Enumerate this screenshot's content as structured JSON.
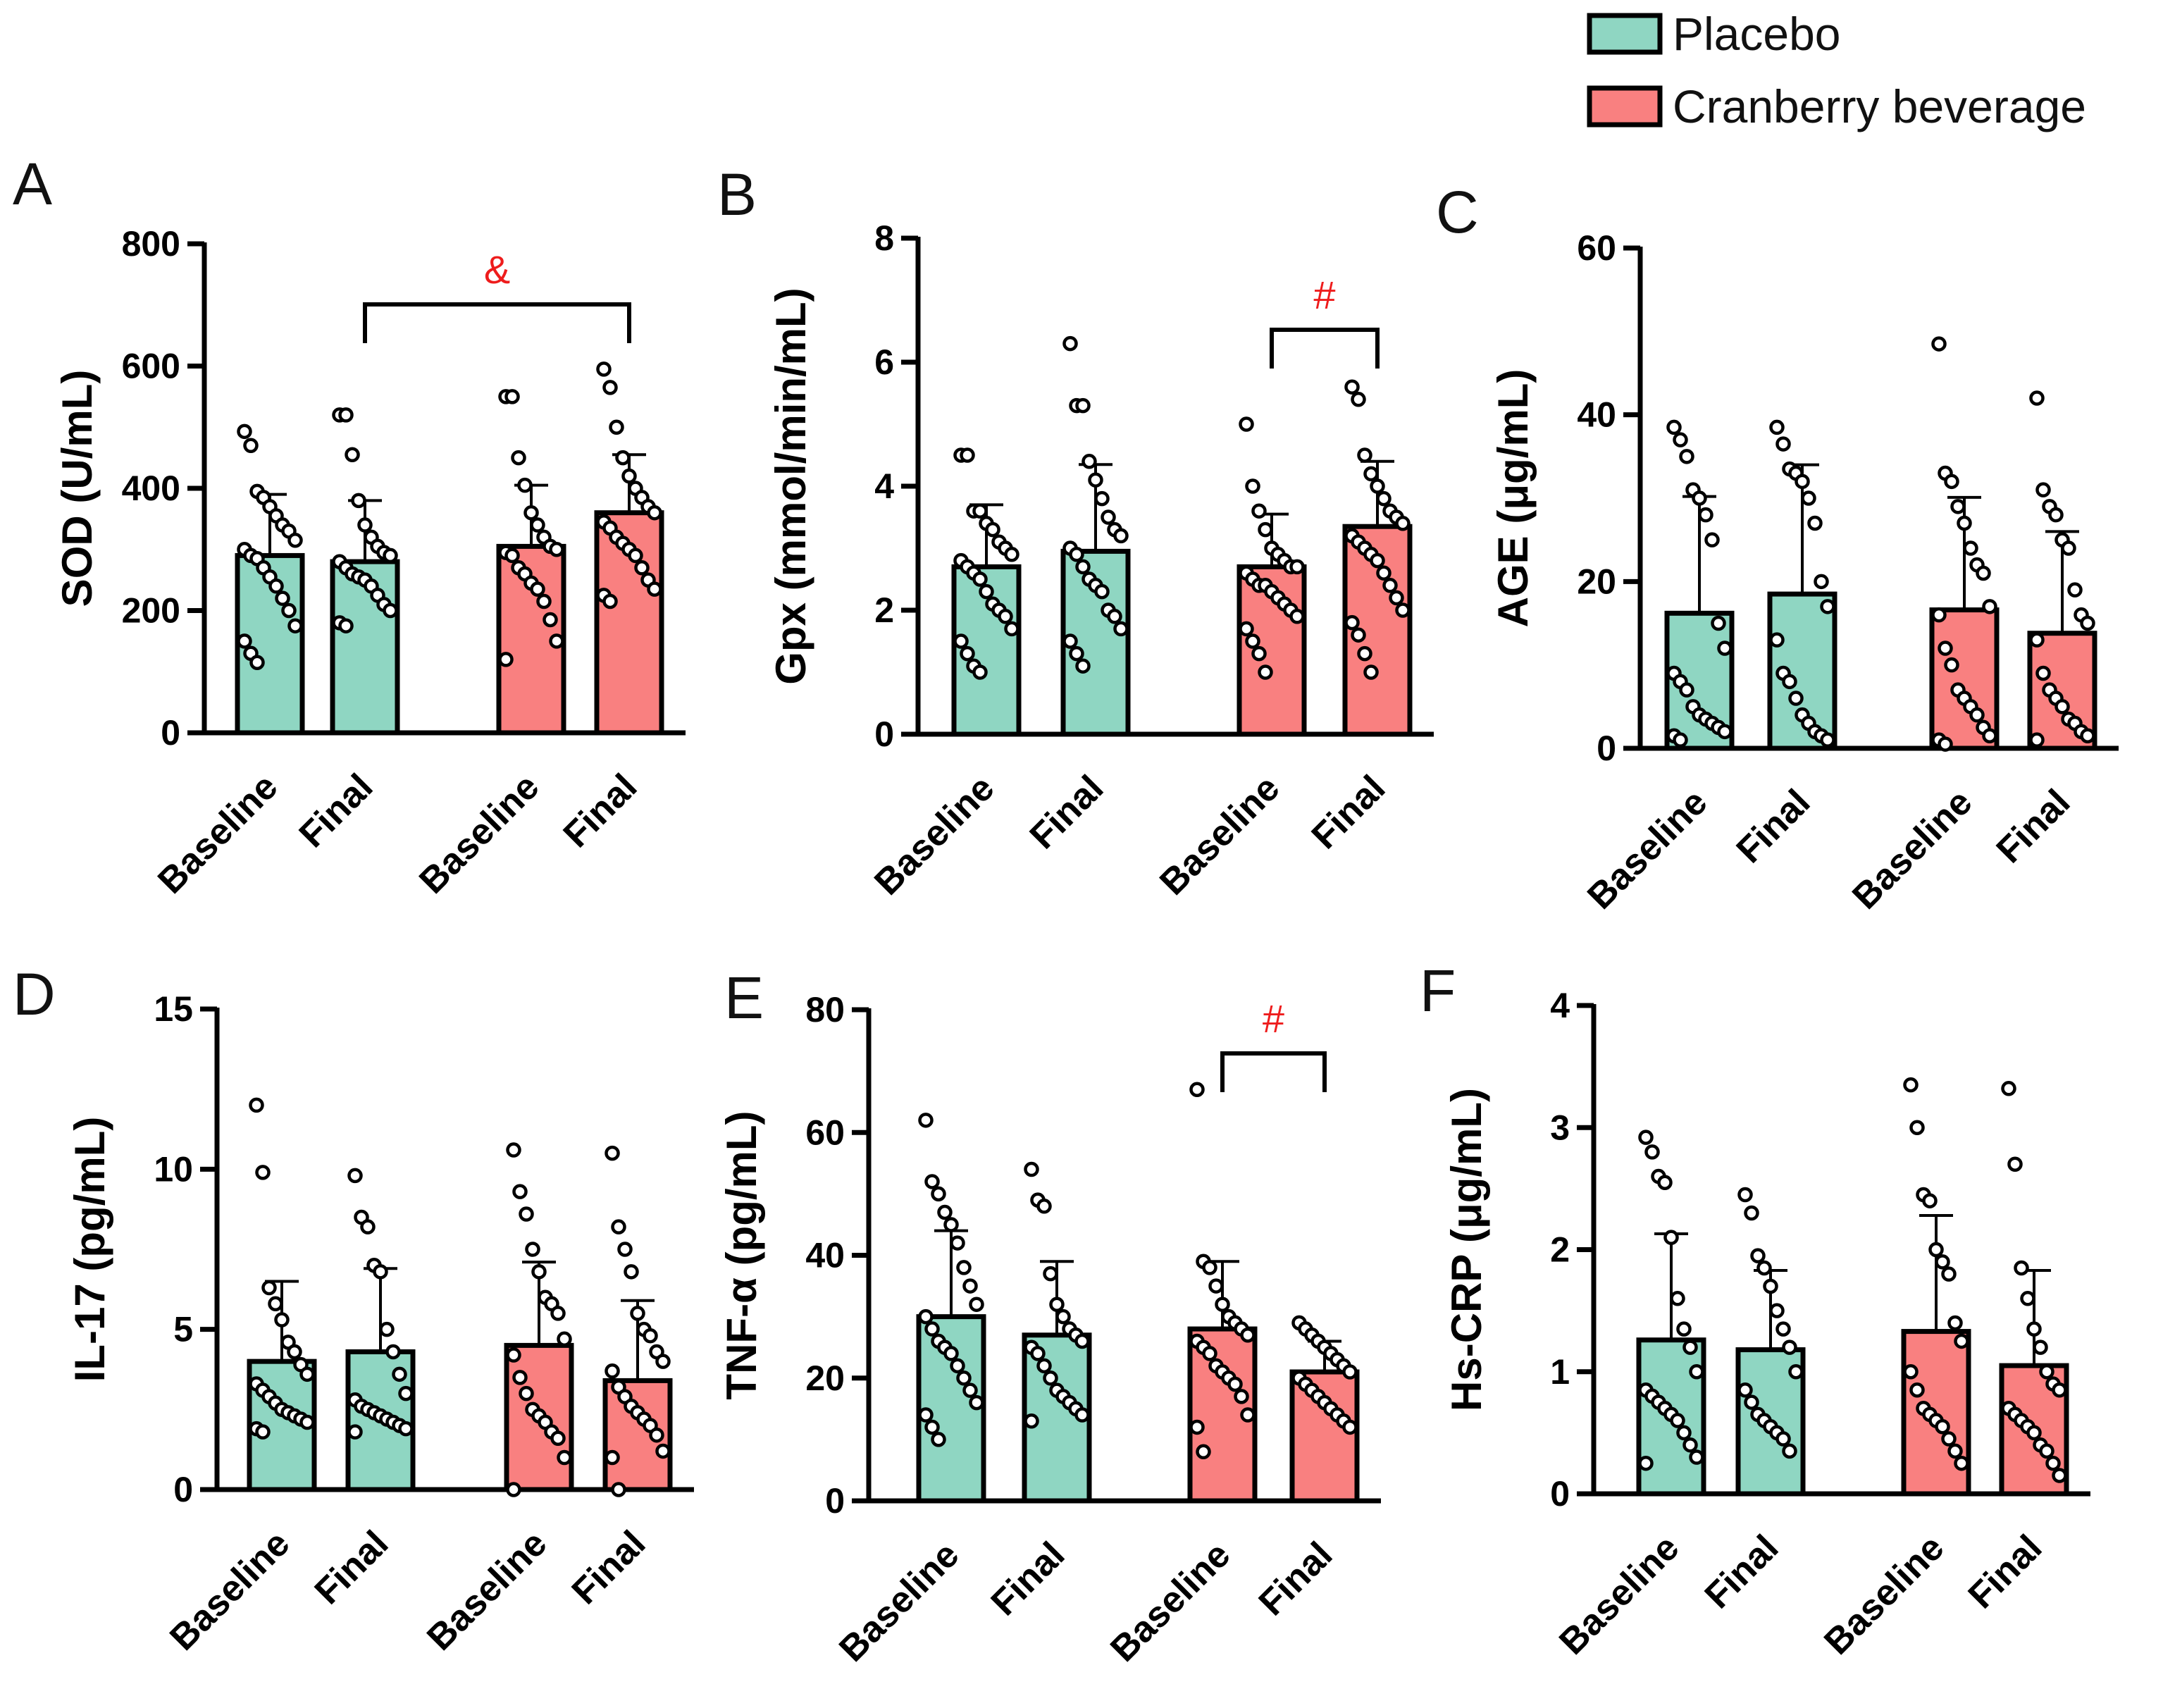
{
  "legend": {
    "items": [
      {
        "label": "Placebo",
        "color": "#8fd6c2"
      },
      {
        "label": "Cranberry beverage",
        "color": "#f98080"
      }
    ]
  },
  "colors": {
    "placebo": "#8fd6c2",
    "cranberry": "#f98080",
    "significance": "#ee1c1c",
    "axis": "#000000"
  },
  "chart_data": [
    {
      "panel": "A",
      "type": "bar",
      "ylabel": "SOD (U/mL)",
      "ylim": [
        0,
        800
      ],
      "yticks": [
        0,
        200,
        400,
        600,
        800
      ],
      "categories": [
        "Baseline",
        "Final",
        "Baseline",
        "Final"
      ],
      "groups": [
        "Placebo",
        "Placebo",
        "Cranberry beverage",
        "Cranberry beverage"
      ],
      "values": [
        290,
        280,
        305,
        360
      ],
      "errors": [
        100,
        100,
        100,
        95
      ],
      "points": [
        [
          493,
          470,
          395,
          385,
          370,
          355,
          340,
          330,
          315,
          300,
          290,
          285,
          270,
          255,
          240,
          220,
          200,
          175,
          150,
          130,
          115
        ],
        [
          520,
          520,
          455,
          380,
          340,
          320,
          305,
          295,
          290,
          280,
          270,
          260,
          255,
          250,
          240,
          225,
          210,
          200,
          180,
          175
        ],
        [
          550,
          550,
          450,
          405,
          360,
          340,
          320,
          305,
          300,
          295,
          290,
          270,
          260,
          245,
          235,
          215,
          185,
          150,
          120
        ],
        [
          595,
          565,
          500,
          450,
          420,
          400,
          385,
          370,
          360,
          345,
          335,
          320,
          310,
          300,
          290,
          270,
          250,
          235,
          225,
          215
        ]
      ],
      "significance": {
        "symbol": "&",
        "from": 1,
        "to": 3
      }
    },
    {
      "panel": "B",
      "type": "bar",
      "ylabel": "Gpx (mmol/min/mL)",
      "ylim": [
        0,
        8
      ],
      "yticks": [
        0,
        2,
        4,
        6,
        8
      ],
      "categories": [
        "Baseline",
        "Final",
        "Baseline",
        "Final"
      ],
      "groups": [
        "Placebo",
        "Placebo",
        "Cranberry beverage",
        "Cranberry beverage"
      ],
      "values": [
        2.7,
        2.95,
        2.7,
        3.35
      ],
      "errors": [
        1.0,
        1.4,
        0.85,
        1.05
      ],
      "points": [
        [
          4.5,
          4.5,
          3.6,
          3.6,
          3.4,
          3.3,
          3.1,
          3.0,
          2.9,
          2.8,
          2.7,
          2.6,
          2.5,
          2.3,
          2.1,
          2.0,
          1.9,
          1.7,
          1.5,
          1.3,
          1.1,
          1.0
        ],
        [
          6.3,
          5.3,
          5.3,
          4.4,
          4.1,
          3.8,
          3.5,
          3.3,
          3.2,
          3.0,
          2.9,
          2.7,
          2.5,
          2.4,
          2.3,
          2.0,
          1.9,
          1.7,
          1.5,
          1.3,
          1.1
        ],
        [
          5.0,
          4.0,
          3.6,
          3.3,
          3.0,
          2.9,
          2.8,
          2.7,
          2.7,
          2.6,
          2.5,
          2.4,
          2.4,
          2.3,
          2.2,
          2.1,
          2.0,
          1.9,
          1.7,
          1.5,
          1.3,
          1.0
        ],
        [
          5.6,
          5.4,
          4.5,
          4.2,
          4.0,
          3.8,
          3.6,
          3.5,
          3.4,
          3.2,
          3.1,
          3.0,
          2.9,
          2.8,
          2.6,
          2.4,
          2.2,
          2.0,
          1.8,
          1.6,
          1.3,
          1.0
        ]
      ],
      "significance": {
        "symbol": "#",
        "from": 2,
        "to": 3
      }
    },
    {
      "panel": "C",
      "type": "bar",
      "ylabel": "AGE (μg/mL)",
      "ylim": [
        0,
        60
      ],
      "yticks": [
        0,
        20,
        40,
        60
      ],
      "categories": [
        "Baseline",
        "Final",
        "Baseline",
        "Final"
      ],
      "groups": [
        "Placebo",
        "Placebo",
        "Cranberry beverage",
        "Cranberry beverage"
      ],
      "values": [
        16.2,
        18.5,
        16.6,
        13.8
      ],
      "errors": [
        14,
        15.5,
        13.5,
        12.2
      ],
      "points": [
        [
          38.5,
          37,
          35,
          31,
          30,
          28,
          25,
          15,
          12,
          9,
          8,
          7,
          5,
          4,
          3.5,
          3,
          2.5,
          2,
          1.5,
          1
        ],
        [
          38.5,
          36.5,
          33.5,
          33,
          32,
          30,
          27,
          20,
          17,
          13,
          9,
          8,
          6,
          4,
          3,
          2,
          1.5,
          1
        ],
        [
          48.5,
          33,
          32,
          29,
          27,
          24,
          22,
          21,
          17,
          16,
          12,
          10,
          7,
          6,
          5,
          4,
          2.5,
          1.5,
          1,
          0.5
        ],
        [
          42,
          31,
          29,
          28,
          25,
          24,
          19,
          16,
          15,
          13,
          9,
          7,
          6,
          5,
          3.5,
          3,
          2,
          1.5,
          1
        ]
      ],
      "significance": null
    },
    {
      "panel": "D",
      "type": "bar",
      "ylabel": "IL-17 (pg/mL)",
      "ylim": [
        0,
        15
      ],
      "yticks": [
        0,
        5,
        10,
        15
      ],
      "categories": [
        "Baseline",
        "Final",
        "Baseline",
        "Final"
      ],
      "groups": [
        "Placebo",
        "Placebo",
        "Cranberry beverage",
        "Cranberry beverage"
      ],
      "values": [
        4.0,
        4.3,
        4.5,
        3.4
      ],
      "errors": [
        2.5,
        2.6,
        2.6,
        2.5
      ],
      "points": [
        [
          12.0,
          9.9,
          6.3,
          5.8,
          5.3,
          4.6,
          4.3,
          3.9,
          3.6,
          3.3,
          3.1,
          2.9,
          2.7,
          2.5,
          2.4,
          2.3,
          2.2,
          2.1,
          1.9,
          1.8
        ],
        [
          9.8,
          8.5,
          8.2,
          7.0,
          6.8,
          5.0,
          4.3,
          3.6,
          3.0,
          2.8,
          2.6,
          2.5,
          2.4,
          2.3,
          2.2,
          2.1,
          2.0,
          1.9,
          1.8
        ],
        [
          10.6,
          9.3,
          8.6,
          7.5,
          6.8,
          6.0,
          5.8,
          5.5,
          4.7,
          4.2,
          3.5,
          3.0,
          2.5,
          2.3,
          2.1,
          1.8,
          1.6,
          1.0,
          0
        ],
        [
          10.5,
          8.2,
          7.5,
          6.8,
          5.5,
          5.0,
          4.8,
          4.3,
          4.0,
          3.7,
          3.2,
          2.9,
          2.6,
          2.4,
          2.2,
          2.0,
          1.7,
          1.2,
          1.0,
          0
        ]
      ],
      "significance": null
    },
    {
      "panel": "E",
      "type": "bar",
      "ylabel": "TNF-α (pg/mL)",
      "ylim": [
        0,
        80
      ],
      "yticks": [
        0,
        20,
        40,
        60,
        80
      ],
      "categories": [
        "Baseline",
        "Final",
        "Baseline",
        "Final"
      ],
      "groups": [
        "Placebo",
        "Placebo",
        "Cranberry beverage",
        "Cranberry beverage"
      ],
      "values": [
        30,
        27,
        28,
        21
      ],
      "errors": [
        14,
        12,
        11,
        5
      ],
      "points": [
        [
          62,
          52,
          50,
          47,
          45,
          42,
          38,
          35,
          32,
          30,
          28,
          26,
          25,
          24,
          22,
          20,
          18,
          16,
          14,
          12,
          10
        ],
        [
          54,
          49,
          48,
          37,
          32,
          30,
          28,
          27,
          26,
          25,
          24,
          22,
          20,
          18,
          17,
          16,
          15,
          14,
          13
        ],
        [
          67,
          39,
          38,
          35,
          32,
          30,
          29,
          28,
          27,
          26,
          25,
          24,
          22,
          21,
          20,
          19,
          17,
          14,
          12,
          8
        ],
        [
          29,
          28,
          27,
          26,
          25,
          24,
          23,
          22,
          21,
          20,
          19,
          18,
          17,
          16,
          15,
          14,
          13,
          12
        ]
      ],
      "significance": {
        "symbol": "#",
        "from": 2,
        "to": 3
      }
    },
    {
      "panel": "F",
      "type": "bar",
      "ylabel": "Hs-CRP (μg/mL)",
      "ylim": [
        0,
        4
      ],
      "yticks": [
        0,
        1,
        2,
        3,
        4
      ],
      "categories": [
        "Baseline",
        "Final",
        "Baseline",
        "Final"
      ],
      "groups": [
        "Placebo",
        "Placebo",
        "Cranberry beverage",
        "Cranberry beverage"
      ],
      "values": [
        1.26,
        1.18,
        1.33,
        1.05
      ],
      "errors": [
        0.87,
        0.65,
        0.95,
        0.78
      ],
      "points": [
        [
          2.92,
          2.8,
          2.6,
          2.55,
          2.1,
          1.6,
          1.35,
          1.2,
          1.0,
          0.85,
          0.8,
          0.75,
          0.7,
          0.65,
          0.6,
          0.5,
          0.4,
          0.3,
          0.25
        ],
        [
          2.45,
          2.3,
          1.95,
          1.85,
          1.7,
          1.5,
          1.35,
          1.2,
          1.0,
          0.85,
          0.75,
          0.65,
          0.6,
          0.55,
          0.5,
          0.45,
          0.35
        ],
        [
          3.35,
          3.0,
          2.45,
          2.4,
          2.0,
          1.9,
          1.8,
          1.4,
          1.25,
          1.0,
          0.85,
          0.7,
          0.65,
          0.6,
          0.55,
          0.45,
          0.35,
          0.25
        ],
        [
          3.32,
          2.7,
          1.85,
          1.6,
          1.35,
          1.2,
          1.0,
          0.9,
          0.85,
          0.7,
          0.65,
          0.6,
          0.55,
          0.5,
          0.4,
          0.35,
          0.25,
          0.15
        ]
      ],
      "significance": null
    }
  ]
}
